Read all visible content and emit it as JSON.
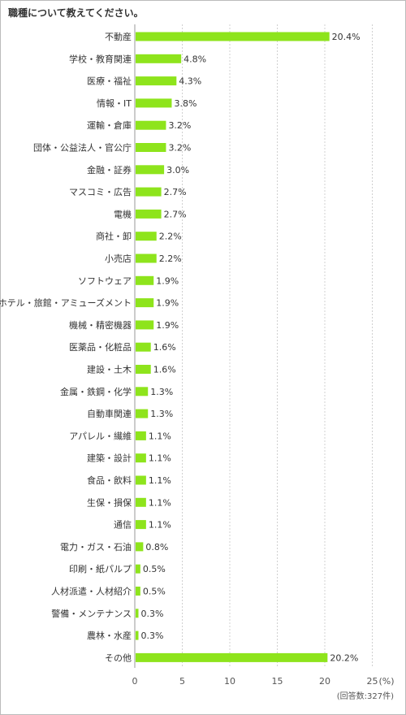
{
  "title": "職種について教えてください。",
  "chart_data": {
    "type": "bar",
    "orientation": "horizontal",
    "title": "職種について教えてください。",
    "unit_label": "(%)",
    "sample_note": "(回答数:327件)",
    "xlim": [
      0,
      25
    ],
    "xticks": [
      0,
      5,
      10,
      15,
      20,
      25
    ],
    "grid": true,
    "bar_color": "#8ee41c",
    "categories": [
      "不動産",
      "学校・教育関連",
      "医療・福祉",
      "情報・IT",
      "運輸・倉庫",
      "団体・公益法人・官公庁",
      "金融・証券",
      "マスコミ・広告",
      "電機",
      "商社・卸",
      "小売店",
      "ソフトウェア",
      "ホテル・旅館・アミューズメント",
      "機械・精密機器",
      "医薬品・化粧品",
      "建設・土木",
      "金属・鉄鋼・化学",
      "自動車関連",
      "アパレル・繊維",
      "建築・設計",
      "食品・飲料",
      "生保・損保",
      "通信",
      "電力・ガス・石油",
      "印刷・紙パルプ",
      "人材派遣・人材紹介",
      "警備・メンテナンス",
      "農林・水産",
      "その他"
    ],
    "values": [
      20.4,
      4.8,
      4.3,
      3.8,
      3.2,
      3.2,
      3.0,
      2.7,
      2.7,
      2.2,
      2.2,
      1.9,
      1.9,
      1.9,
      1.6,
      1.6,
      1.3,
      1.3,
      1.1,
      1.1,
      1.1,
      1.1,
      1.1,
      0.8,
      0.5,
      0.5,
      0.3,
      0.3,
      20.2
    ],
    "value_labels": [
      "20.4%",
      "4.8%",
      "4.3%",
      "3.8%",
      "3.2%",
      "3.2%",
      "3.0%",
      "2.7%",
      "2.7%",
      "2.2%",
      "2.2%",
      "1.9%",
      "1.9%",
      "1.9%",
      "1.6%",
      "1.6%",
      "1.3%",
      "1.3%",
      "1.1%",
      "1.1%",
      "1.1%",
      "1.1%",
      "1.1%",
      "0.8%",
      "0.5%",
      "0.5%",
      "0.3%",
      "0.3%",
      "20.2%"
    ]
  }
}
